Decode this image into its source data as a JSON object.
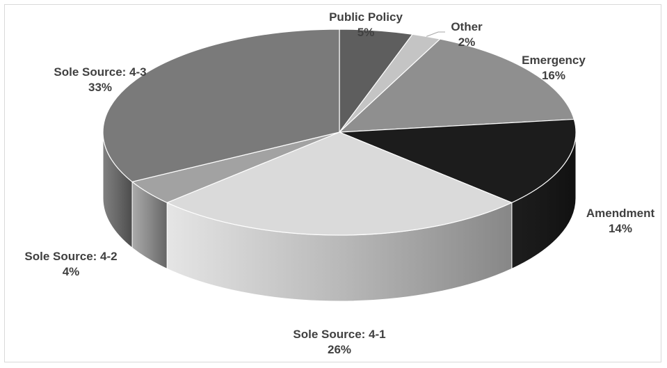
{
  "chart_data": {
    "type": "pie",
    "title": "",
    "style": "3d-grayscale",
    "slices": [
      {
        "label": "Public Policy",
        "value": 5,
        "display": "5%",
        "color": "#5e5e5e"
      },
      {
        "label": "Other",
        "value": 2,
        "display": "2%",
        "color": "#c4c4c4"
      },
      {
        "label": "Emergency",
        "value": 16,
        "display": "16%",
        "color": "#8f8f8f"
      },
      {
        "label": "Amendment",
        "value": 14,
        "display": "14%",
        "color": "#1c1c1c"
      },
      {
        "label": "Sole Source: 4-1",
        "value": 26,
        "display": "26%",
        "color": "#dadada"
      },
      {
        "label": "Sole Source: 4-2",
        "value": 4,
        "display": "4%",
        "color": "#a2a2a2"
      },
      {
        "label": "Sole Source: 4-3",
        "value": 33,
        "display": "33%",
        "color": "#7a7a7a"
      }
    ]
  }
}
